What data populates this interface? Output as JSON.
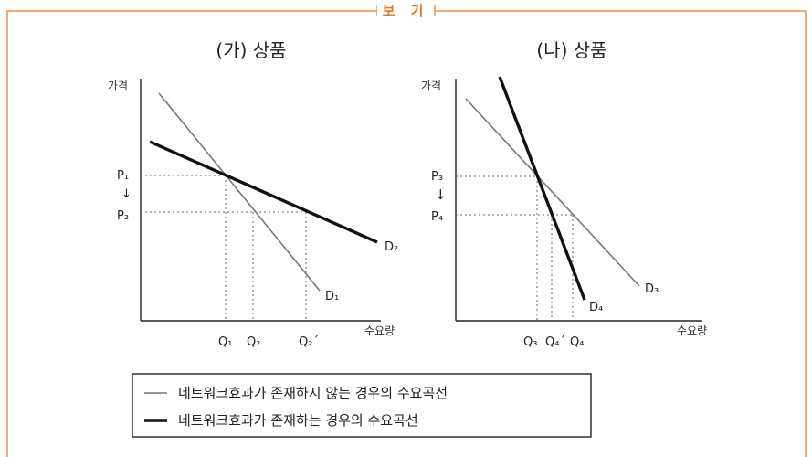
{
  "frame": {
    "tag": "보 기",
    "border_color": "#e8781e"
  },
  "panel_a": {
    "title": "(가) 상품",
    "ylabel": "가격",
    "xlabel": "수요량",
    "price_labels": [
      "P₁",
      "↓",
      "P₂"
    ],
    "quantity_labels": [
      "Q₁",
      "Q₂",
      "Q₂´"
    ],
    "curve_labels": [
      "D₁",
      "D₂"
    ]
  },
  "panel_b": {
    "title": "(나) 상품",
    "ylabel": "가격",
    "xlabel": "수요량",
    "price_labels": [
      "P₃",
      "↓",
      "P₄"
    ],
    "quantity_labels": [
      "Q₃",
      "Q₄´",
      "Q₄"
    ],
    "curve_labels": [
      "D₃",
      "D₄"
    ]
  },
  "legend": {
    "thin": "네트워크효과가 존재하지 않는 경우의 수요곡선",
    "thick": "네트워크효과가 존재하는 경우의 수요곡선"
  }
}
